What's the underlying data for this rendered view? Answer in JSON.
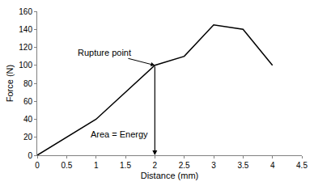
{
  "chart_data": {
    "type": "line",
    "x": [
      0,
      1,
      2,
      2.5,
      3,
      3.5,
      4
    ],
    "values": [
      0,
      40,
      100,
      110,
      145,
      140,
      100
    ],
    "color": "#000000",
    "x_label": "Distance (mm)",
    "y_label": "Force (N)",
    "xlim": [
      0,
      4.5
    ],
    "xticks": [
      0,
      0.5,
      1,
      1.5,
      2,
      2.5,
      3,
      3.5,
      4,
      4.5
    ],
    "ylim": [
      0,
      160
    ],
    "yticks": [
      0,
      20,
      40,
      60,
      80,
      100,
      120,
      140,
      160
    ],
    "grid": false,
    "annotations": [
      {
        "text": "Rupture point",
        "x": 2,
        "y": 100
      },
      {
        "text": "Area = Energy",
        "x": 2,
        "y_start": 100,
        "y_end": 0
      }
    ]
  }
}
